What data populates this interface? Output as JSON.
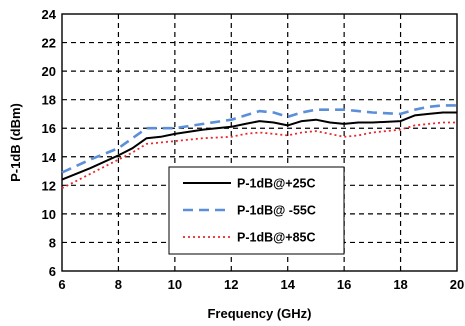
{
  "chart_data": {
    "type": "line",
    "title": "",
    "xlabel": "Frequency (GHz)",
    "ylabel": "P-1dB (dBm)",
    "xlim": [
      6,
      20
    ],
    "ylim": [
      6,
      24
    ],
    "xticks": [
      "6",
      "8",
      "10",
      "12",
      "14",
      "16",
      "18",
      "20"
    ],
    "yticks": [
      "6",
      "8",
      "10",
      "12",
      "14",
      "16",
      "18",
      "20",
      "22",
      "24"
    ],
    "grid": true,
    "legend_position": "lower-center",
    "series": [
      {
        "name": "P-1dB@+25C",
        "color": "#000000",
        "style": "solid",
        "x": [
          6,
          7,
          8,
          8.5,
          9,
          9.5,
          10,
          11,
          12,
          12.5,
          13,
          13.5,
          14,
          14.5,
          15,
          15.5,
          16,
          16.5,
          17,
          18,
          18.5,
          19,
          19.5,
          20
        ],
        "y": [
          12.4,
          13.2,
          14.1,
          14.6,
          15.3,
          15.4,
          15.6,
          15.9,
          16.1,
          16.3,
          16.5,
          16.4,
          16.2,
          16.5,
          16.6,
          16.4,
          16.3,
          16.4,
          16.4,
          16.5,
          16.9,
          17.0,
          17.1,
          17.1
        ]
      },
      {
        "name": "P-1dB@ -55C",
        "color": "#5b8fd9",
        "style": "dashed",
        "x": [
          6,
          7,
          8,
          8.5,
          9,
          9.5,
          10,
          11,
          12,
          12.5,
          13,
          13.5,
          14,
          14.5,
          15,
          15.5,
          16,
          16.5,
          17,
          18,
          18.5,
          19,
          19.5,
          20
        ],
        "y": [
          12.9,
          13.8,
          14.6,
          15.3,
          16.0,
          16.0,
          16.0,
          16.3,
          16.6,
          16.9,
          17.2,
          17.1,
          16.8,
          17.1,
          17.3,
          17.3,
          17.3,
          17.2,
          17.1,
          17.0,
          17.3,
          17.5,
          17.6,
          17.6
        ]
      },
      {
        "name": "P-1dB@+85C",
        "color": "#e8282b",
        "style": "dotted",
        "x": [
          6,
          7,
          8,
          8.5,
          9,
          9.5,
          10,
          11,
          12,
          12.5,
          13,
          13.5,
          14,
          14.5,
          15,
          15.5,
          16,
          16.5,
          17,
          18,
          18.5,
          19,
          19.5,
          20
        ],
        "y": [
          11.8,
          12.8,
          13.8,
          14.3,
          14.9,
          15.0,
          15.1,
          15.3,
          15.4,
          15.6,
          15.7,
          15.6,
          15.5,
          15.7,
          15.8,
          15.6,
          15.4,
          15.5,
          15.7,
          15.9,
          16.2,
          16.3,
          16.4,
          16.4
        ]
      }
    ]
  }
}
